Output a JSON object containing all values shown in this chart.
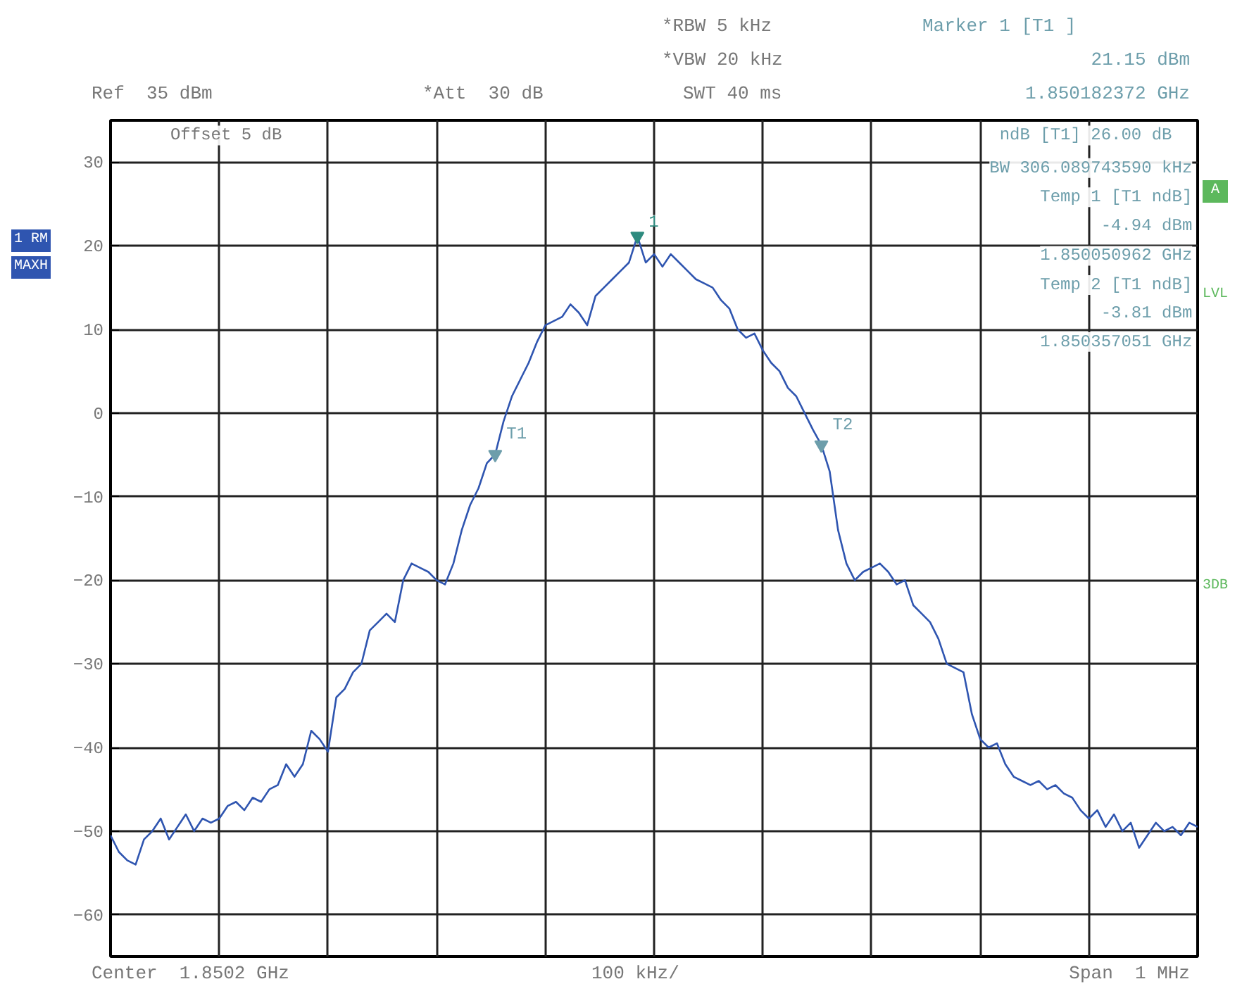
{
  "chart_data": {
    "type": "line",
    "annotations": [
      "Ref  35 dBm",
      "*Att  30 dB",
      "*RBW 5 kHz",
      "*VBW 20 kHz",
      "SWT 40 ms",
      "Marker 1 [T1 ]",
      "21.15 dBm",
      "1.850182372 GHz",
      "Offset  5 dB",
      "ndB [T1]   26.00 dB",
      "BW 306.089743590 kHz",
      "Temp 1 [T1 ndB]",
      "-4.94 dBm",
      "1.850050962 GHz",
      "Temp 2 [T1 ndB]",
      "-3.81 dBm",
      "1.850357051 GHz",
      "1 RM",
      "MAXH",
      "A",
      "LVL",
      "3DB",
      "Center  1.8502 GHz",
      "100 kHz/",
      "Span  1 MHz"
    ],
    "categories": [
      null,
      null,
      null,
      null,
      null,
      null,
      null,
      null,
      null,
      null,
      null,
      null,
      null,
      null,
      null,
      null,
      null,
      null,
      null,
      null,
      null,
      null,
      null,
      null,
      null,
      null,
      null,
      null,
      null,
      null,
      null,
      null,
      null,
      null,
      null,
      null,
      null,
      null,
      null,
      null,
      null,
      null,
      null,
      null,
      null,
      null,
      null,
      null,
      null,
      null,
      null,
      null,
      null,
      null,
      null,
      null,
      null,
      null,
      null,
      null,
      null,
      null,
      null,
      null,
      null,
      null,
      null,
      null,
      null,
      null,
      null,
      null,
      null,
      null,
      null,
      null,
      null,
      null,
      null,
      null,
      null,
      null,
      null,
      null,
      null,
      null,
      null,
      null,
      null,
      null,
      null,
      null,
      null,
      null,
      null,
      null,
      null,
      null,
      null,
      null,
      null,
      null,
      null,
      null,
      null,
      null,
      null,
      null,
      null,
      null,
      null,
      null,
      null,
      null,
      null,
      null,
      null,
      null,
      null,
      null,
      null,
      null,
      null,
      null,
      null,
      null,
      null,
      null,
      null,
      null,
      null
    ],
    "series": [
      {
        "color": "#2f55b0",
        "values": [
          -50.5,
          -52.5,
          -53.5,
          -54,
          -51,
          -50,
          -48.5,
          -51,
          -49.5,
          -48,
          -50,
          -48.5,
          -49,
          -48.5,
          -47,
          -46.5,
          -47.5,
          -46,
          -46.5,
          -45,
          -44.5,
          -42,
          -43.5,
          -42,
          -38,
          -39,
          -40.5,
          -34,
          -33,
          -31,
          -30,
          -26,
          -25,
          -24,
          -25,
          -20,
          -18,
          -18.5,
          -19,
          -20,
          -20.5,
          -18,
          -14,
          -11,
          -9,
          -6,
          -4.94,
          -1,
          2,
          4,
          6,
          8.5,
          10.5,
          11,
          11.5,
          13,
          12,
          10.5,
          14,
          15,
          16,
          17,
          18,
          21.15,
          18,
          19,
          17.5,
          19,
          18,
          17,
          16,
          15.5,
          15,
          13.5,
          12.5,
          10,
          9,
          9.5,
          7.5,
          6,
          5,
          3,
          2,
          0,
          -2,
          -3.81,
          -7,
          -14,
          -18,
          -20,
          -19,
          -18.5,
          -18,
          -19,
          -20.5,
          -20,
          -23,
          -24,
          -25,
          -27,
          -30,
          -30.5,
          -31,
          -36,
          -39,
          -40,
          -39.5,
          -42,
          -43.5,
          -44,
          -44.5,
          -44,
          -45,
          -44.5,
          -45.5,
          -46,
          -47.5,
          -48.5,
          -47.5,
          -49.5,
          -48,
          -50,
          -49,
          -52,
          -50.5,
          -49,
          -50,
          -49.5,
          -50.5,
          -49,
          -49.5
        ]
      },
      {
        "name": "1",
        "type": "scatter",
        "marker": "triangle",
        "color": "#2e8b7f",
        "values": [
          null,
          null,
          null,
          null,
          null,
          null,
          null,
          null,
          null,
          null,
          null,
          null,
          null,
          null,
          null,
          null,
          null,
          null,
          null,
          null,
          null,
          null,
          null,
          null,
          null,
          null,
          null,
          null,
          null,
          null,
          null,
          null,
          null,
          null,
          null,
          null,
          null,
          null,
          null,
          null,
          null,
          null,
          null,
          null,
          null,
          null,
          null,
          null,
          null,
          null,
          null,
          null,
          null,
          null,
          null,
          null,
          null,
          null,
          null,
          null,
          null,
          null,
          null,
          21.15,
          null,
          null,
          null,
          null,
          null,
          null,
          null,
          null,
          null,
          null,
          null,
          null,
          null,
          null,
          null,
          null,
          null,
          null,
          null,
          null,
          null,
          null,
          null,
          null,
          null,
          null,
          null,
          null,
          null,
          null,
          null,
          null,
          null,
          null,
          null,
          null,
          null,
          null,
          null,
          null,
          null,
          null,
          null,
          null,
          null,
          null,
          null,
          null,
          null,
          null,
          null,
          null,
          null,
          null,
          null,
          null,
          null,
          null,
          null,
          null,
          null,
          null,
          null,
          null,
          null,
          null,
          null
        ]
      },
      {
        "name": "T1",
        "type": "scatter",
        "marker": "triangle",
        "color": "#6d9eab",
        "values": [
          null,
          null,
          null,
          null,
          null,
          null,
          null,
          null,
          null,
          null,
          null,
          null,
          null,
          null,
          null,
          null,
          null,
          null,
          null,
          null,
          null,
          null,
          null,
          null,
          null,
          null,
          null,
          null,
          null,
          null,
          null,
          null,
          null,
          null,
          null,
          null,
          null,
          null,
          null,
          null,
          null,
          null,
          null,
          null,
          null,
          null,
          -4.94,
          null,
          null,
          null,
          null,
          null,
          null,
          null,
          null,
          null,
          null,
          null,
          null,
          null,
          null,
          null,
          null,
          null,
          null,
          null,
          null,
          null,
          null,
          null,
          null,
          null,
          null,
          null,
          null,
          null,
          null,
          null,
          null,
          null,
          null,
          null,
          null,
          null,
          null,
          null,
          null,
          null,
          null,
          null,
          null,
          null,
          null,
          null,
          null,
          null,
          null,
          null,
          null,
          null,
          null,
          null,
          null,
          null,
          null,
          null,
          null,
          null,
          null,
          null,
          null,
          null,
          null,
          null,
          null,
          null,
          null,
          null,
          null,
          null,
          null,
          null,
          null,
          null,
          null,
          null,
          null,
          null,
          null,
          null,
          null
        ]
      },
      {
        "name": "T2",
        "type": "scatter",
        "marker": "triangle",
        "color": "#6d9eab",
        "values": [
          null,
          null,
          null,
          null,
          null,
          null,
          null,
          null,
          null,
          null,
          null,
          null,
          null,
          null,
          null,
          null,
          null,
          null,
          null,
          null,
          null,
          null,
          null,
          null,
          null,
          null,
          null,
          null,
          null,
          null,
          null,
          null,
          null,
          null,
          null,
          null,
          null,
          null,
          null,
          null,
          null,
          null,
          null,
          null,
          null,
          null,
          null,
          null,
          null,
          null,
          null,
          null,
          null,
          null,
          null,
          null,
          null,
          null,
          null,
          null,
          null,
          null,
          null,
          null,
          null,
          null,
          null,
          null,
          null,
          null,
          null,
          null,
          null,
          null,
          null,
          null,
          null,
          null,
          null,
          null,
          null,
          null,
          null,
          null,
          null,
          -3.81,
          null,
          null,
          null,
          null,
          null,
          null,
          null,
          null,
          null,
          null,
          null,
          null,
          null,
          null,
          null,
          null,
          null,
          null,
          null,
          null,
          null,
          null,
          null,
          null,
          null,
          null,
          null,
          null,
          null,
          null,
          null,
          null,
          null,
          null,
          null,
          null,
          null,
          null,
          null,
          null,
          null,
          null,
          null,
          null,
          null
        ]
      }
    ],
    "ylim": [
      -65,
      35
    ],
    "yticks": [
      30,
      20,
      10,
      0,
      -10,
      -20,
      -30,
      -40,
      -50,
      -60
    ],
    "grid": true,
    "tick_labels": "y"
  }
}
